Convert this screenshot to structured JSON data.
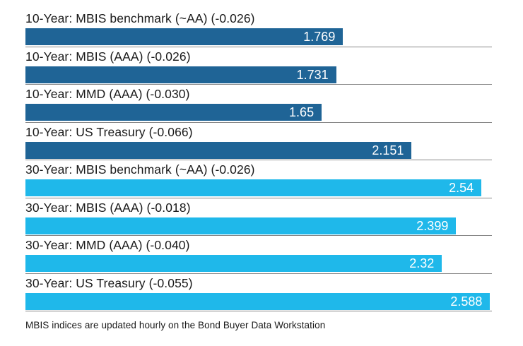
{
  "chart_data": {
    "type": "bar",
    "orientation": "horizontal",
    "title": "",
    "xlabel": "",
    "ylabel": "",
    "xlim": [
      0,
      2.588
    ],
    "grid": false,
    "legend_position": "none",
    "value_labels_inside_bars": true,
    "rows": [
      {
        "label": "10-Year: MBIS benchmark (~AA) (-0.026)",
        "value": 1.769,
        "display": "1.769",
        "change": -0.026,
        "group": "10yr"
      },
      {
        "label": "10-Year: MBIS (AAA) (-0.026)",
        "value": 1.731,
        "display": "1.731",
        "change": -0.026,
        "group": "10yr"
      },
      {
        "label": "10-Year: MMD (AAA) (-0.030)",
        "value": 1.65,
        "display": "1.65",
        "change": -0.03,
        "group": "10yr"
      },
      {
        "label": "10-Year: US Treasury (-0.066)",
        "value": 2.151,
        "display": "2.151",
        "change": -0.066,
        "group": "10yr"
      },
      {
        "label": "30-Year: MBIS benchmark (~AA) (-0.026)",
        "value": 2.54,
        "display": "2.54",
        "change": -0.026,
        "group": "30yr"
      },
      {
        "label": "30-Year: MBIS (AAA) (-0.018)",
        "value": 2.399,
        "display": "2.399",
        "change": -0.018,
        "group": "30yr"
      },
      {
        "label": "30-Year: MMD (AAA) (-0.040)",
        "value": 2.32,
        "display": "2.32",
        "change": -0.04,
        "group": "30yr"
      },
      {
        "label": "30-Year: US Treasury (-0.055)",
        "value": 2.588,
        "display": "2.588",
        "change": -0.055,
        "group": "30yr"
      }
    ]
  },
  "footer": {
    "note": "MBIS indices are updated hourly on the Bond Buyer Data Workstation"
  },
  "colors": {
    "bar_10yr": "#1f6496",
    "bar_30yr": "#1fb8ea",
    "separator": "#878787",
    "label_text": "#1a1a1a",
    "value_text": "#ffffff",
    "background": "#ffffff"
  }
}
